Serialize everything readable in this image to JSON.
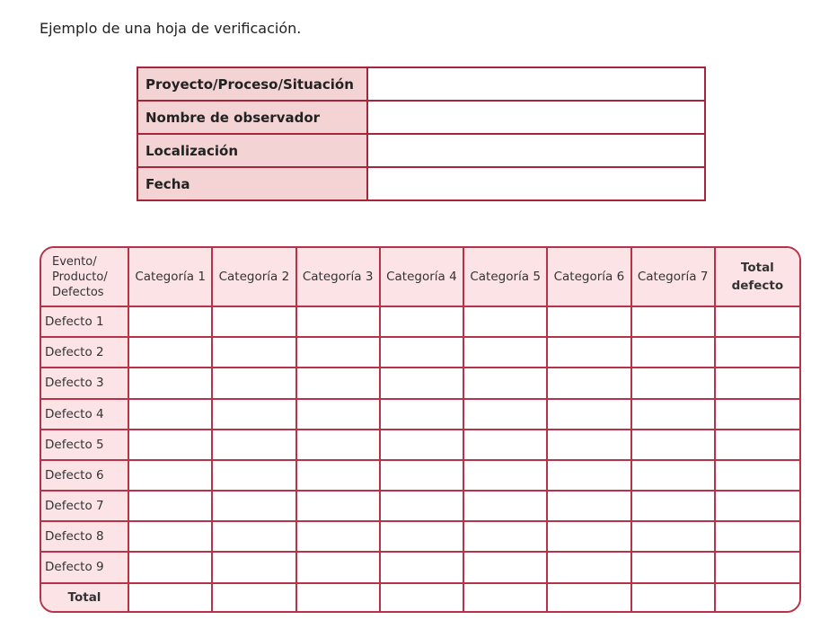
{
  "caption": "Ejemplo de una hoja de verificación.",
  "info_rows": [
    {
      "label": "Proyecto/Proceso/Situación",
      "value": ""
    },
    {
      "label": "Nombre de observador",
      "value": ""
    },
    {
      "label": "Localización",
      "value": ""
    },
    {
      "label": "Fecha",
      "value": ""
    }
  ],
  "grid": {
    "corner_lines": [
      "Evento/",
      "Producto/",
      "Defectos"
    ],
    "categories": [
      "Categoría 1",
      "Categoría 2",
      "Categoría 3",
      "Categoría 4",
      "Categoría 5",
      "Categoría 6",
      "Categoría 7"
    ],
    "total_header_lines": [
      "Total",
      "defecto"
    ],
    "rows": [
      "Defecto 1",
      "Defecto 2",
      "Defecto 3",
      "Defecto 4",
      "Defecto 5",
      "Defecto 6",
      "Defecto 7",
      "Defecto 8",
      "Defecto 9"
    ],
    "total_row": "Total"
  },
  "colors": {
    "border": "#b8334a",
    "header_fill": "#fce4e6",
    "label_fill": "#f4d3d4"
  }
}
